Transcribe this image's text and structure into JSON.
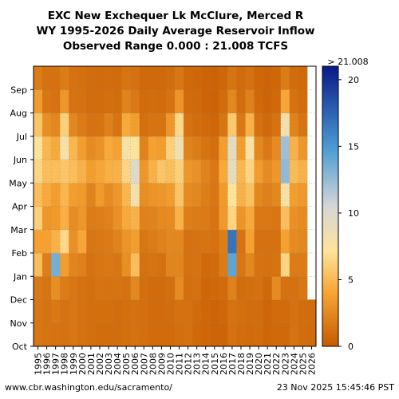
{
  "header": {
    "line1": "EXC New Exchequer Lk McClure, Merced R",
    "line2": "WY 1995-2026 Daily Average Reservoir Inflow",
    "line3": "Observed Range 0.000 : 21.008 TCFS"
  },
  "footer": {
    "url": "www.cbr.washington.edu/sacramento/",
    "timestamp": "23 Nov 2025 15:45:46 PST"
  },
  "colors": {
    "stop0": "#c65a00",
    "stop1": "#f7a534",
    "stop2": "#fde39a",
    "stop3": "#d6d6d6",
    "stop4": "#4f9ed4",
    "stop5": "#081a8a",
    "missing": "#ffffff"
  },
  "chart_data": {
    "type": "heatmap",
    "x_label_values": [
      "1995",
      "1996",
      "1997",
      "1998",
      "1999",
      "2000",
      "2001",
      "2002",
      "2003",
      "2004",
      "2005",
      "2006",
      "2007",
      "2008",
      "2009",
      "2010",
      "2011",
      "2012",
      "2013",
      "2014",
      "2015",
      "2016",
      "2017",
      "2018",
      "2019",
      "2020",
      "2021",
      "2022",
      "2023",
      "2024",
      "2025",
      "2026"
    ],
    "y_months": [
      "Oct",
      "Nov",
      "Dec",
      "Jan",
      "Feb",
      "Mar",
      "Apr",
      "May",
      "Jun",
      "Jul",
      "Aug",
      "Sep"
    ],
    "colorbar": {
      "min": 0,
      "max": 21.008,
      "ticks": [
        0,
        5,
        10,
        15,
        20
      ],
      "max_label": "> 21.008"
    },
    "monthly_mean_tcfs": {
      "1995": [
        1.5,
        1.5,
        1.6,
        5.2,
        3.8,
        6.2,
        5.2,
        6.5,
        7.2,
        5.6,
        3.5,
        1.8
      ],
      "1996": [
        1.4,
        1.3,
        1.4,
        1.9,
        3.8,
        3.2,
        4.2,
        5.2,
        4.9,
        2.8,
        1.5,
        1.2
      ],
      "1997": [
        1.3,
        1.6,
        2.8,
        13.5,
        4.6,
        3.4,
        3.6,
        5.2,
        4.2,
        2.4,
        1.3,
        1.2
      ],
      "1998": [
        1.2,
        1.3,
        1.8,
        3.6,
        6.6,
        4.5,
        4.8,
        5.6,
        7.9,
        6.2,
        3.2,
        1.8
      ],
      "1999": [
        1.5,
        1.5,
        1.5,
        2.3,
        2.9,
        2.7,
        3.6,
        5.2,
        4.8,
        2.4,
        1.3,
        1.2
      ],
      "2000": [
        1.2,
        1.2,
        1.2,
        2.0,
        4.0,
        3.2,
        3.4,
        4.6,
        3.6,
        1.7,
        1.2,
        1.1
      ],
      "2001": [
        1.1,
        1.1,
        1.1,
        1.2,
        1.5,
        1.8,
        2.2,
        3.6,
        2.6,
        1.3,
        1.0,
        1.0
      ],
      "2002": [
        1.0,
        1.1,
        1.4,
        1.5,
        1.6,
        1.9,
        3.4,
        4.0,
        3.0,
        1.4,
        1.0,
        0.9
      ],
      "2003": [
        1.0,
        1.1,
        1.3,
        1.6,
        1.7,
        2.1,
        2.6,
        4.5,
        4.2,
        2.1,
        1.1,
        1.0
      ],
      "2004": [
        1.0,
        1.0,
        1.4,
        1.5,
        2.2,
        2.9,
        3.2,
        4.6,
        3.8,
        1.4,
        1.0,
        0.9
      ],
      "2005": [
        1.1,
        1.1,
        1.2,
        2.8,
        3.1,
        4.2,
        4.8,
        6.4,
        7.8,
        4.2,
        2.2,
        1.4
      ],
      "2006": [
        1.3,
        1.2,
        2.4,
        5.2,
        3.6,
        4.6,
        8.2,
        9.8,
        7.2,
        3.6,
        1.6,
        1.2
      ],
      "2007": [
        1.1,
        1.1,
        1.1,
        1.2,
        1.5,
        2.1,
        2.8,
        3.2,
        2.2,
        1.1,
        0.9,
        0.8
      ],
      "2008": [
        0.9,
        0.9,
        0.9,
        1.4,
        1.8,
        2.2,
        3.1,
        4.6,
        3.8,
        1.4,
        1.0,
        0.8
      ],
      "2009": [
        0.9,
        0.9,
        0.9,
        1.2,
        2.1,
        2.5,
        3.2,
        5.6,
        3.6,
        1.4,
        0.9,
        0.8
      ],
      "2010": [
        0.9,
        1.0,
        1.1,
        2.3,
        2.4,
        2.6,
        3.5,
        5.2,
        6.2,
        3.2,
        1.3,
        1.0
      ],
      "2011": [
        1.1,
        1.2,
        2.6,
        2.3,
        2.4,
        4.6,
        5.6,
        6.2,
        8.4,
        6.6,
        3.1,
        1.5
      ],
      "2012": [
        1.2,
        1.2,
        1.1,
        1.2,
        1.2,
        1.9,
        2.6,
        3.2,
        2.2,
        1.2,
        0.9,
        0.8
      ],
      "2013": [
        0.8,
        0.9,
        1.2,
        1.3,
        1.3,
        1.8,
        2.4,
        2.9,
        1.8,
        1.0,
        0.8,
        0.7
      ],
      "2014": [
        0.7,
        0.7,
        0.7,
        0.8,
        1.4,
        1.7,
        1.9,
        2.2,
        1.4,
        0.8,
        0.6,
        0.6
      ],
      "2015": [
        0.6,
        0.6,
        0.8,
        0.9,
        1.2,
        1.4,
        1.5,
        1.6,
        1.1,
        0.7,
        0.5,
        0.5
      ],
      "2016": [
        0.6,
        0.7,
        0.9,
        1.8,
        1.9,
        3.3,
        3.4,
        4.2,
        3.6,
        1.5,
        0.9,
        0.7
      ],
      "2017": [
        1.2,
        1.3,
        2.1,
        14.2,
        16.8,
        6.4,
        7.2,
        9.2,
        9.4,
        5.8,
        2.4,
        1.4
      ],
      "2018": [
        1.0,
        1.1,
        1.0,
        1.5,
        1.3,
        3.1,
        4.6,
        4.9,
        3.6,
        1.6,
        1.0,
        0.9
      ],
      "2019": [
        0.9,
        1.0,
        1.1,
        2.4,
        3.8,
        4.2,
        5.4,
        6.4,
        7.6,
        4.6,
        2.0,
        1.2
      ],
      "2020": [
        1.0,
        1.0,
        1.2,
        1.3,
        1.2,
        1.6,
        2.4,
        3.5,
        2.4,
        1.2,
        0.8,
        0.7
      ],
      "2021": [
        0.7,
        0.7,
        0.8,
        1.2,
        1.2,
        1.6,
        2.0,
        2.6,
        1.6,
        0.8,
        0.6,
        0.6
      ],
      "2022": [
        0.8,
        0.9,
        2.6,
        1.4,
        1.2,
        1.5,
        2.4,
        3.2,
        2.6,
        1.3,
        0.8,
        0.7
      ],
      "2023": [
        0.8,
        0.9,
        1.2,
        6.4,
        3.8,
        5.2,
        7.8,
        12.6,
        12.2,
        8.2,
        4.0,
        1.8
      ],
      "2024": [
        1.3,
        1.2,
        1.2,
        1.8,
        2.6,
        2.9,
        3.6,
        5.1,
        4.6,
        2.2,
        1.2,
        1.0
      ],
      "2025": [
        1.0,
        1.0,
        1.5,
        1.8,
        2.4,
        2.6,
        3.3,
        4.6,
        3.2,
        1.4,
        0.9,
        0.8
      ],
      "2026": [
        0.9,
        1.0
      ]
    }
  }
}
